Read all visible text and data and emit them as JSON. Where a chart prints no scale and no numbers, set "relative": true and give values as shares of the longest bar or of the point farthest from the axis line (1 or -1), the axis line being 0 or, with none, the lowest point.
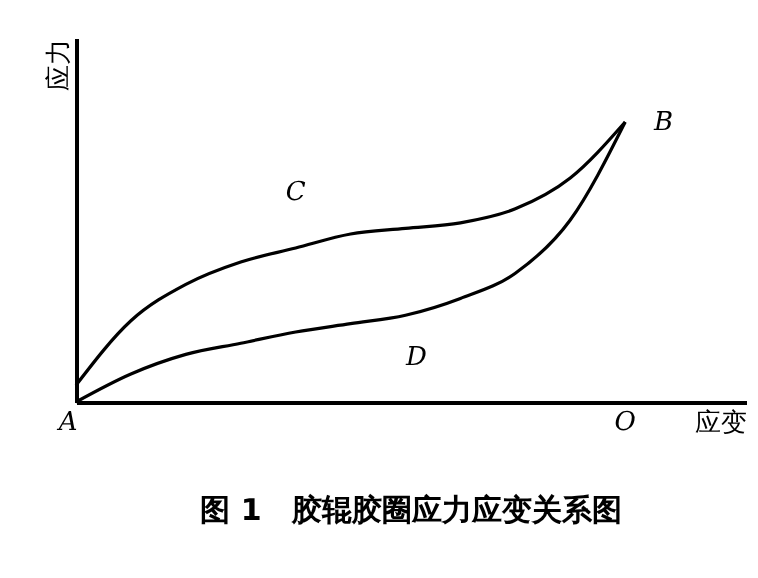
{
  "chart_data": {
    "type": "line",
    "title": "图 1　胶辊胶圈应力应变关系图",
    "xlabel": "应变",
    "ylabel": "应力",
    "relative": true,
    "categories": [
      null,
      null,
      null,
      null,
      null,
      null,
      null,
      null,
      null,
      null,
      null
    ],
    "series": [
      {
        "color": "#000000",
        "values": [
          0.06,
          0.29,
          0.42,
          0.5,
          0.55,
          0.6,
          0.62,
          0.64,
          0.69,
          0.8,
          1
        ]
      },
      {
        "color": "#000000",
        "values": [
          0,
          0.1,
          0.17,
          0.21,
          0.25,
          0.28,
          0.31,
          0.37,
          0.46,
          0.65,
          1
        ]
      }
    ],
    "annotations": [
      "A",
      "B",
      "C",
      "D",
      "O"
    ],
    "legend": false,
    "marker": "none",
    "line_style": "solid"
  }
}
